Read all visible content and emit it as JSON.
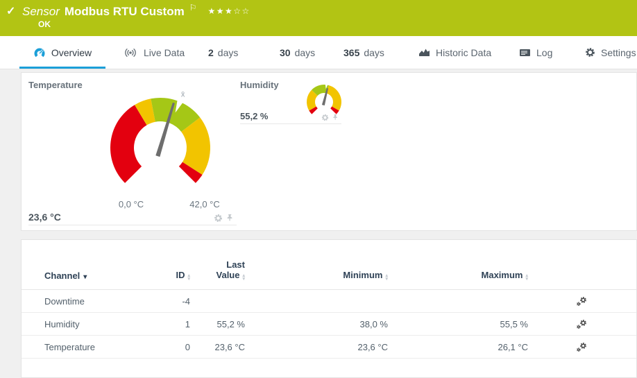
{
  "header": {
    "check_icon": "✓",
    "kind_label": "Sensor",
    "sensor_name": "Modbus RTU Custom",
    "flag_icon": "⚐",
    "stars_filled": "★★★",
    "stars_empty": "☆☆",
    "status": "OK",
    "bg_color": "#b2c414"
  },
  "tabs": {
    "active_color": "#1b9fd8",
    "items": [
      {
        "label": "Overview",
        "icon": "gauge-icon",
        "active": true
      },
      {
        "label": "Live Data",
        "icon": "broadcast-icon"
      },
      {
        "prefix": "2",
        "label": "days"
      },
      {
        "prefix": "30",
        "label": "days"
      },
      {
        "prefix": "365",
        "label": "days"
      },
      {
        "label": "Historic Data",
        "icon": "area-chart-icon"
      },
      {
        "label": "Log",
        "icon": "log-icon"
      },
      {
        "label": "Settings",
        "icon": "gear-icon"
      }
    ]
  },
  "gauges": {
    "palette": {
      "red": "#e3000f",
      "yellow": "#f2c400",
      "green": "#a5c716"
    },
    "needle_color": "#6e6e6e",
    "temperature": {
      "title": "Temperature",
      "value": 23.6,
      "value_label": "23,6 °C",
      "min": 0,
      "min_label": "0,0 °C",
      "max": 42,
      "max_label": "42,0 °C",
      "average": 24.6,
      "avg_marker": "x̄",
      "zones": [
        {
          "color": "red",
          "from": 0,
          "to": 16.2
        },
        {
          "color": "yellow",
          "from": 16.2,
          "to": 19.3
        },
        {
          "color": "green",
          "from": 19.3,
          "to": 29.2
        },
        {
          "color": "yellow",
          "from": 29.2,
          "to": 40.1
        },
        {
          "color": "red",
          "from": 40.1,
          "to": 42
        }
      ]
    },
    "humidity": {
      "title": "Humidity",
      "value": 55.2,
      "value_label": "55,2 %",
      "min": 0,
      "max": 100,
      "average": 53,
      "zones": [
        {
          "color": "red",
          "from": 0,
          "to": 5.5
        },
        {
          "color": "yellow",
          "from": 5.5,
          "to": 33
        },
        {
          "color": "green",
          "from": 33,
          "to": 56
        },
        {
          "color": "yellow",
          "from": 56,
          "to": 94.5
        },
        {
          "color": "red",
          "from": 94.5,
          "to": 100
        }
      ]
    }
  },
  "icons": {
    "overview": "gauge-icon",
    "live_data": "broadcast-icon",
    "historic_data": "area-chart-icon",
    "log": "log-icon",
    "settings": "gear-icon",
    "channel_settings": "double-gear-icon",
    "widget_settings": "gear-icon",
    "widget_pin": "pin-icon",
    "sort": "sort-arrows-icon"
  },
  "table": {
    "columns": [
      {
        "label": "Channel",
        "sorted": "desc"
      },
      {
        "label": "ID"
      },
      {
        "line1": "Last",
        "line2": "Value"
      },
      {
        "label": "Minimum"
      },
      {
        "label": "Maximum"
      }
    ],
    "rows": [
      {
        "channel": "Downtime",
        "id": "-4",
        "last": "",
        "min": "",
        "max": ""
      },
      {
        "channel": "Humidity",
        "id": "1",
        "last": "55,2 %",
        "min": "38,0 %",
        "max": "55,5 %"
      },
      {
        "channel": "Temperature",
        "id": "0",
        "last": "23,6 °C",
        "min": "23,6 °C",
        "max": "26,1 °C"
      }
    ]
  }
}
